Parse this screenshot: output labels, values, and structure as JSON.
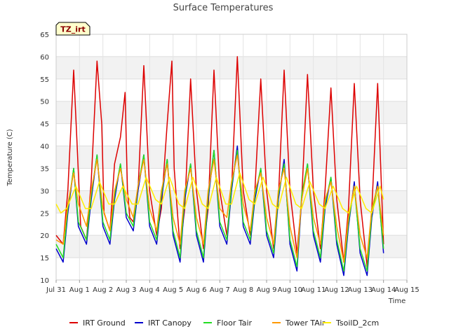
{
  "chart_data": {
    "type": "line",
    "title": "Surface Temperatures",
    "badge": "TZ_irt",
    "xlabel": "Time",
    "ylabel": "Temperature (C)",
    "ylim": [
      10,
      65
    ],
    "yticks": [
      10,
      15,
      20,
      25,
      30,
      35,
      40,
      45,
      50,
      55,
      60,
      65
    ],
    "xlim": [
      0,
      15
    ],
    "xticks": [
      {
        "x": 0,
        "label": "Jul 31"
      },
      {
        "x": 1,
        "label": "Aug 1"
      },
      {
        "x": 2,
        "label": "Aug 2"
      },
      {
        "x": 3,
        "label": "Aug 3"
      },
      {
        "x": 4,
        "label": "Aug 4"
      },
      {
        "x": 5,
        "label": "Aug 5"
      },
      {
        "x": 6,
        "label": "Aug 6"
      },
      {
        "x": 7,
        "label": "Aug 7"
      },
      {
        "x": 8,
        "label": "Aug 8"
      },
      {
        "x": 9,
        "label": "Aug 9"
      },
      {
        "x": 10,
        "label": "Aug 10"
      },
      {
        "x": 11,
        "label": "Aug 11"
      },
      {
        "x": 12,
        "label": "Aug 12"
      },
      {
        "x": 13,
        "label": "Aug 13"
      },
      {
        "x": 14,
        "label": "Aug 14"
      },
      {
        "x": 15,
        "label": "Aug 15"
      }
    ],
    "grid": "horizontal bands",
    "legend_position": "bottom",
    "series": [
      {
        "name": "IRT Ground",
        "color": "#dd0000",
        "x": [
          0.0,
          0.3,
          0.5,
          0.75,
          0.9,
          1.05,
          1.3,
          1.5,
          1.75,
          1.95,
          2.05,
          2.3,
          2.5,
          2.75,
          2.95,
          3.05,
          3.15,
          3.3,
          3.5,
          3.75,
          4.0,
          4.3,
          4.5,
          4.75,
          4.95,
          5.05,
          5.3,
          5.5,
          5.75,
          6.0,
          6.3,
          6.5,
          6.75,
          7.0,
          7.3,
          7.5,
          7.75,
          8.0,
          8.3,
          8.5,
          8.75,
          9.0,
          9.3,
          9.5,
          9.75,
          10.0,
          10.3,
          10.5,
          10.75,
          11.0,
          11.3,
          11.5,
          11.75,
          12.0,
          12.3,
          12.5,
          12.75,
          13.0,
          13.3,
          13.5,
          13.75,
          14.0
        ],
        "values": [
          20,
          18,
          30,
          57,
          40,
          22,
          19,
          32,
          59,
          45,
          25,
          21,
          36,
          42,
          52,
          30,
          24,
          23,
          30,
          58,
          30,
          20,
          26,
          45,
          59,
          35,
          17,
          26,
          55,
          30,
          17,
          26,
          57,
          30,
          20,
          30,
          60,
          30,
          20,
          30,
          55,
          30,
          17,
          28,
          57,
          30,
          16,
          28,
          56,
          30,
          17,
          30,
          53,
          28,
          14,
          26,
          54,
          28,
          13,
          26,
          54,
          18
        ]
      },
      {
        "name": "IRT Canopy",
        "color": "#0000cc",
        "x": [
          0.0,
          0.3,
          0.5,
          0.75,
          0.95,
          1.3,
          1.5,
          1.75,
          2.0,
          2.3,
          2.5,
          2.75,
          3.0,
          3.3,
          3.5,
          3.75,
          4.0,
          4.3,
          4.5,
          4.75,
          5.0,
          5.3,
          5.5,
          5.75,
          6.0,
          6.3,
          6.5,
          6.75,
          7.0,
          7.3,
          7.5,
          7.75,
          8.0,
          8.3,
          8.5,
          8.75,
          9.0,
          9.3,
          9.5,
          9.75,
          10.0,
          10.3,
          10.5,
          10.75,
          11.0,
          11.3,
          11.5,
          11.75,
          12.0,
          12.3,
          12.5,
          12.75,
          13.0,
          13.3,
          13.5,
          13.75,
          14.0
        ],
        "values": [
          17,
          14,
          25,
          35,
          22,
          18,
          28,
          38,
          22,
          18,
          28,
          36,
          24,
          21,
          30,
          38,
          22,
          18,
          28,
          37,
          20,
          14,
          28,
          36,
          20,
          14,
          28,
          39,
          22,
          18,
          30,
          40,
          22,
          18,
          28,
          35,
          20,
          15,
          28,
          37,
          18,
          12,
          28,
          36,
          20,
          14,
          26,
          33,
          18,
          11,
          22,
          32,
          16,
          11,
          24,
          32,
          16
        ]
      },
      {
        "name": "Floor Tair",
        "color": "#22dd22",
        "x": [
          0.0,
          0.3,
          0.5,
          0.75,
          0.95,
          1.3,
          1.5,
          1.75,
          2.0,
          2.3,
          2.5,
          2.75,
          3.0,
          3.3,
          3.5,
          3.75,
          4.0,
          4.3,
          4.5,
          4.75,
          5.0,
          5.3,
          5.5,
          5.75,
          6.0,
          6.3,
          6.5,
          6.75,
          7.0,
          7.3,
          7.5,
          7.75,
          8.0,
          8.3,
          8.5,
          8.75,
          9.0,
          9.3,
          9.5,
          9.75,
          10.0,
          10.3,
          10.5,
          10.75,
          11.0,
          11.3,
          11.5,
          11.75,
          12.0,
          12.3,
          12.5,
          12.75,
          13.0,
          13.3,
          13.5,
          13.75,
          14.0
        ],
        "values": [
          18,
          15,
          26,
          35,
          23,
          19,
          29,
          38,
          23,
          19,
          29,
          36,
          25,
          22,
          31,
          38,
          23,
          19,
          29,
          37,
          21,
          15,
          29,
          36,
          21,
          15,
          29,
          39,
          23,
          19,
          31,
          39,
          23,
          19,
          29,
          35,
          21,
          16,
          29,
          36,
          19,
          13,
          29,
          36,
          21,
          15,
          27,
          33,
          19,
          12,
          23,
          31,
          17,
          12,
          25,
          31,
          17
        ]
      },
      {
        "name": "Tower TAir",
        "color": "#ff9900",
        "x": [
          0.0,
          0.3,
          0.5,
          0.75,
          0.95,
          1.3,
          1.5,
          1.75,
          2.0,
          2.3,
          2.5,
          2.75,
          3.0,
          3.3,
          3.5,
          3.75,
          4.0,
          4.3,
          4.5,
          4.75,
          5.0,
          5.3,
          5.5,
          5.75,
          6.0,
          6.3,
          6.5,
          6.75,
          7.0,
          7.3,
          7.5,
          7.75,
          8.0,
          8.3,
          8.5,
          8.75,
          9.0,
          9.3,
          9.5,
          9.75,
          10.0,
          10.3,
          10.5,
          10.75,
          11.0,
          11.3,
          11.5,
          11.75,
          12.0,
          12.3,
          12.5,
          12.75,
          13.0,
          13.3,
          13.5,
          13.75,
          14.0
        ],
        "values": [
          19,
          18,
          27,
          34,
          27,
          22,
          30,
          37,
          26,
          21,
          30,
          35,
          28,
          24,
          31,
          37,
          26,
          21,
          30,
          36,
          24,
          18,
          30,
          35,
          24,
          18,
          30,
          37,
          26,
          24,
          32,
          38,
          27,
          21,
          30,
          34,
          24,
          18,
          30,
          35,
          22,
          15,
          28,
          35,
          24,
          18,
          28,
          32,
          22,
          14,
          24,
          31,
          20,
          15,
          26,
          31,
          20
        ]
      },
      {
        "name": "TsoilD_2cm",
        "color": "#ffee00",
        "x": [
          0.0,
          0.2,
          0.45,
          0.85,
          1.25,
          1.5,
          1.85,
          2.25,
          2.5,
          2.85,
          3.25,
          3.5,
          3.85,
          4.25,
          4.5,
          4.85,
          5.25,
          5.5,
          5.85,
          6.25,
          6.5,
          6.85,
          7.25,
          7.5,
          7.85,
          8.25,
          8.5,
          8.85,
          9.25,
          9.5,
          9.85,
          10.25,
          10.5,
          10.85,
          11.25,
          11.5,
          11.85,
          12.25,
          12.5,
          12.85,
          13.25,
          13.5,
          13.85,
          14.0
        ],
        "values": [
          27,
          25,
          26,
          31,
          26,
          26,
          32,
          27,
          27,
          31,
          27,
          27,
          33,
          28,
          27,
          33,
          27,
          26,
          33,
          27,
          26,
          33,
          27,
          27,
          34,
          28,
          27,
          33,
          27,
          26,
          33,
          27,
          26,
          32,
          27,
          26,
          31,
          26,
          25,
          31,
          26,
          25,
          31,
          28
        ]
      }
    ]
  }
}
